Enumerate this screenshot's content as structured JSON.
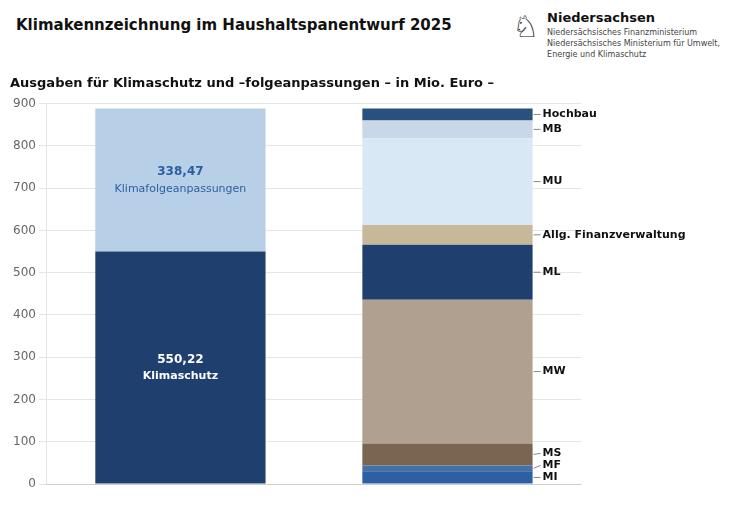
{
  "chart_data": {
    "type": "bar",
    "title": "Klimakennzeichnung im Haushaltspanentwurf 2025",
    "subtitle": "Ausgaben für Klimaschutz und –folgeanpassungen – in Mio. Euro –",
    "annotations": [
      "Niedersachsen",
      "Niedersächsisches Finanzministerium\nNiedersächsisches Ministerium für Umwelt,\nEnergie und Klimaschutz",
      "♘"
    ],
    "categories": [
      null,
      null
    ],
    "stacked": true,
    "grid": true,
    "tick_labels": "y",
    "ylim": [
      0,
      900
    ],
    "yticks": [
      0,
      100,
      200,
      300,
      400,
      500,
      600,
      700,
      800,
      900
    ],
    "series": [
      {
        "name": "Klimaschutz",
        "color": "#1f3f6e",
        "values": [
          550.22,
          null
        ],
        "value_labels": [
          "550,22",
          null
        ],
        "data_labels": true
      },
      {
        "name": "Klimafolgeanpassungen",
        "color": "#b8cfe8",
        "values": [
          338.47,
          null
        ],
        "value_labels": [
          "338,47",
          null
        ],
        "data_labels": true
      },
      {
        "name": "MI",
        "color": "#2e5fa3",
        "values": [
          null,
          30.0
        ]
      },
      {
        "name": "MF",
        "color": "#4472a8",
        "values": [
          null,
          14.0
        ]
      },
      {
        "name": "MS",
        "color": "#7a6650",
        "values": [
          null,
          52.0
        ]
      },
      {
        "name": "MW",
        "color": "#b0a090",
        "values": [
          null,
          340.0
        ]
      },
      {
        "name": "ML",
        "color": "#1f3f6e",
        "values": [
          null,
          130.0
        ]
      },
      {
        "name": "Allg. Finanzverwaltung",
        "color": "#c8b89a",
        "values": [
          null,
          47.0
        ]
      },
      {
        "name": "MU",
        "color": "#d8e8f5",
        "values": [
          null,
          205.0
        ]
      },
      {
        "name": "MB",
        "color": "#c8d8e8",
        "values": [
          null,
          42.0
        ]
      },
      {
        "name": "Hochbau",
        "color": "#2a5080",
        "values": [
          null,
          28.69
        ]
      }
    ]
  }
}
